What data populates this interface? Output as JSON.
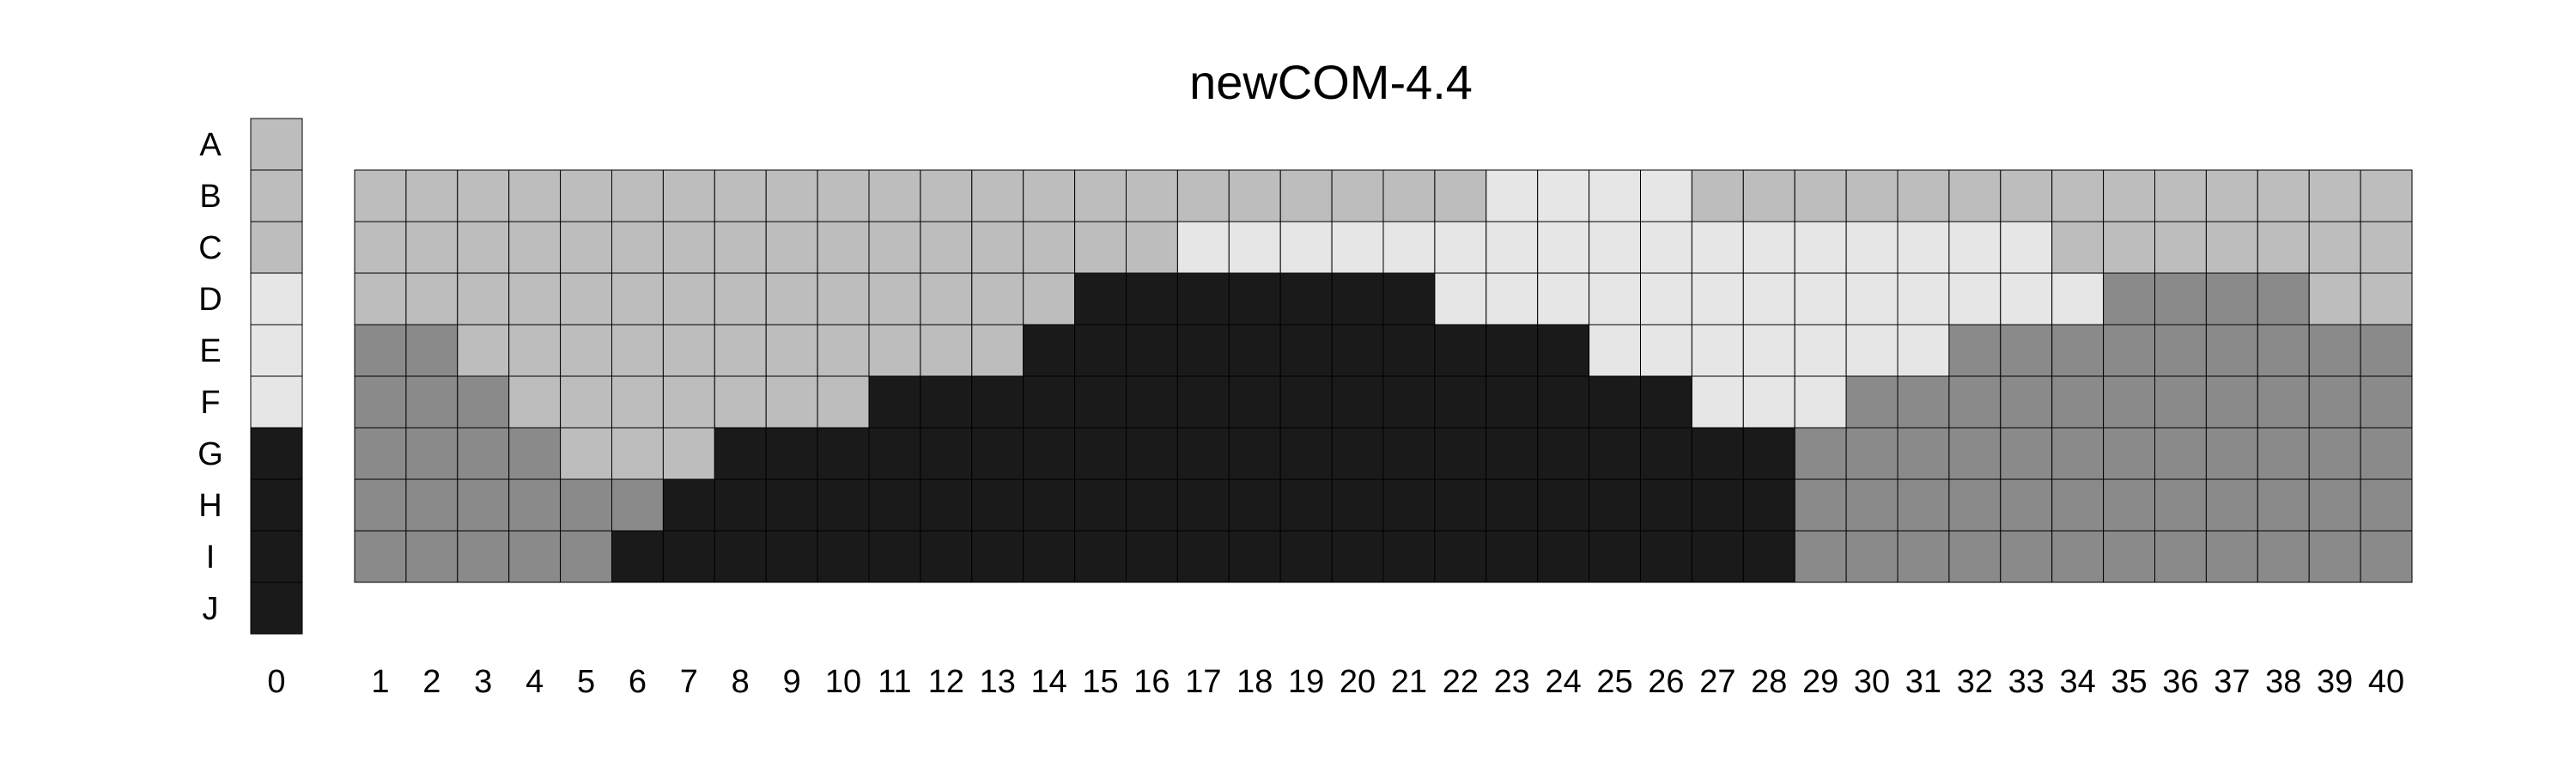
{
  "chart_data": {
    "type": "heatmap",
    "title": "newCOM-4.4",
    "row_labels": [
      "A",
      "B",
      "C",
      "D",
      "E",
      "F",
      "G",
      "H",
      "I",
      "J"
    ],
    "col0_label": "0",
    "column_labels": [
      "1",
      "2",
      "3",
      "4",
      "5",
      "6",
      "7",
      "8",
      "9",
      "10",
      "11",
      "12",
      "13",
      "14",
      "15",
      "16",
      "17",
      "18",
      "19",
      "20",
      "21",
      "22",
      "23",
      "24",
      "25",
      "26",
      "27",
      "28",
      "29",
      "30",
      "31",
      "32",
      "33",
      "34",
      "35",
      "36",
      "37",
      "38",
      "39",
      "40"
    ],
    "palette": {
      "A": "#bdbdbd",
      "B": "#bdbdbd",
      "C": "#bdbdbd",
      "D": "#e6e6e6",
      "E": "#e6e6e6",
      "F": "#e6e6e6",
      "G": "#1a1a1a",
      "H": "#1a1a1a",
      "I": "#1a1a1a",
      "J": "#1a1a1a"
    },
    "grid_rows": [
      "B",
      "C",
      "D",
      "E",
      "F",
      "G",
      "H",
      "I"
    ],
    "grid_values": [
      [
        1,
        1,
        1,
        1,
        1,
        1,
        1,
        1,
        1,
        1,
        1,
        1,
        1,
        1,
        1,
        1,
        1,
        1,
        1,
        1,
        1,
        1,
        2,
        2,
        2,
        2,
        1,
        1,
        1,
        1,
        1,
        1,
        1,
        1,
        1,
        1,
        1,
        1,
        1,
        1
      ],
      [
        1,
        1,
        1,
        1,
        1,
        1,
        1,
        1,
        1,
        1,
        1,
        1,
        1,
        1,
        1,
        1,
        2,
        2,
        2,
        2,
        2,
        2,
        2,
        2,
        2,
        2,
        2,
        2,
        2,
        2,
        2,
        2,
        2,
        1,
        1,
        1,
        1,
        1,
        1,
        1
      ],
      [
        1,
        1,
        1,
        1,
        1,
        1,
        1,
        1,
        1,
        1,
        1,
        1,
        1,
        1,
        3,
        3,
        3,
        3,
        3,
        3,
        3,
        2,
        2,
        2,
        2,
        2,
        2,
        2,
        2,
        2,
        2,
        2,
        2,
        2,
        4,
        4,
        4,
        4,
        1,
        1
      ],
      [
        4,
        4,
        1,
        1,
        1,
        1,
        1,
        1,
        1,
        1,
        1,
        1,
        1,
        3,
        3,
        3,
        3,
        3,
        3,
        3,
        3,
        3,
        3,
        3,
        2,
        2,
        2,
        2,
        2,
        2,
        2,
        4,
        4,
        4,
        4,
        4,
        4,
        4,
        4,
        4
      ],
      [
        4,
        4,
        4,
        1,
        1,
        1,
        1,
        1,
        1,
        1,
        3,
        3,
        3,
        3,
        3,
        3,
        3,
        3,
        3,
        3,
        3,
        3,
        3,
        3,
        3,
        3,
        2,
        2,
        2,
        4,
        4,
        4,
        4,
        4,
        4,
        4,
        4,
        4,
        4,
        4
      ],
      [
        4,
        4,
        4,
        4,
        1,
        1,
        1,
        3,
        3,
        3,
        3,
        3,
        3,
        3,
        3,
        3,
        3,
        3,
        3,
        3,
        3,
        3,
        3,
        3,
        3,
        3,
        3,
        3,
        4,
        4,
        4,
        4,
        4,
        4,
        4,
        4,
        4,
        4,
        4,
        4
      ],
      [
        4,
        4,
        4,
        4,
        4,
        4,
        3,
        3,
        3,
        3,
        3,
        3,
        3,
        3,
        3,
        3,
        3,
        3,
        3,
        3,
        3,
        3,
        3,
        3,
        3,
        3,
        3,
        3,
        4,
        4,
        4,
        4,
        4,
        4,
        4,
        4,
        4,
        4,
        4,
        4
      ],
      [
        4,
        4,
        4,
        4,
        4,
        3,
        3,
        3,
        3,
        3,
        3,
        3,
        3,
        3,
        3,
        3,
        3,
        3,
        3,
        3,
        3,
        3,
        3,
        3,
        3,
        3,
        3,
        3,
        4,
        4,
        4,
        4,
        4,
        4,
        4,
        4,
        4,
        4,
        4,
        4
      ]
    ],
    "value_colors": {
      "1": "#bdbdbd",
      "2": "#e6e6e6",
      "3": "#1a1a1a",
      "4": "#8a8a8a"
    },
    "xlabel": "",
    "ylabel": "",
    "grid": true,
    "legend": "left"
  }
}
